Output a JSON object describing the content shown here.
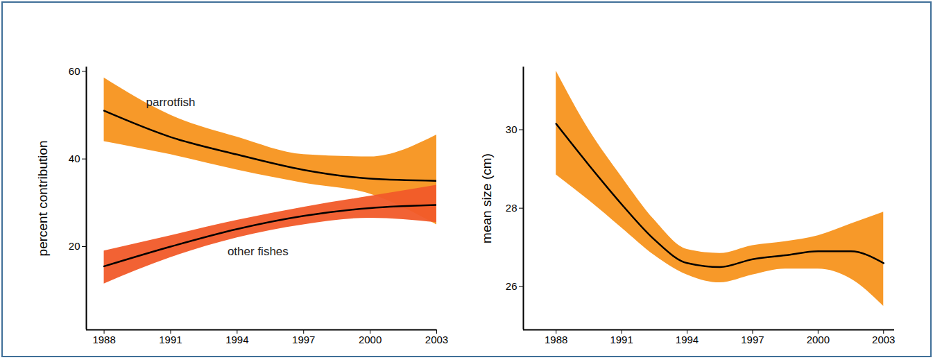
{
  "chart_data": [
    {
      "type": "line",
      "ylabel": "percent contribution",
      "x": [
        1988,
        1991,
        1994,
        1997,
        2000,
        2003
      ],
      "xlim": [
        1987.2,
        2003
      ],
      "xticks": [
        1988,
        1991,
        1994,
        1997,
        2000,
        2003
      ],
      "ylim": [
        1,
        61
      ],
      "yticks": [
        20,
        40,
        60
      ],
      "series": [
        {
          "name": "parrotfish",
          "color": "#f7941e",
          "values": [
            51,
            45,
            41,
            37.5,
            35.5,
            35
          ],
          "lower": [
            44,
            41,
            37.5,
            34.5,
            32,
            25
          ],
          "upper": [
            58.5,
            50,
            45,
            41,
            40.5,
            45.5
          ]
        },
        {
          "name": "other fishes",
          "color": "#f15a29",
          "values": [
            15.5,
            20,
            24,
            27,
            28.8,
            29.5
          ],
          "lower": [
            11.5,
            17.5,
            22,
            25,
            26.5,
            25.5
          ],
          "upper": [
            19,
            22.5,
            26,
            29,
            31.5,
            34
          ]
        }
      ]
    },
    {
      "type": "line",
      "ylabel": "mean size (cm)",
      "x": [
        1988,
        1989.5,
        1991,
        1992.5,
        1994,
        1995.5,
        1997,
        1998.5,
        2000,
        2001.5,
        2003
      ],
      "xlim": [
        1986.5,
        2003.5
      ],
      "xticks": [
        1988,
        1991,
        1994,
        1997,
        2000,
        2003
      ],
      "ylim": [
        24.9,
        31.6
      ],
      "yticks": [
        26,
        28,
        30
      ],
      "series": [
        {
          "color": "#f7941e",
          "values": [
            30.15,
            29.1,
            28.1,
            27.2,
            26.6,
            26.5,
            26.7,
            26.8,
            26.9,
            26.9,
            26.6
          ],
          "lower": [
            28.85,
            28.2,
            27.5,
            26.8,
            26.3,
            26.1,
            26.3,
            26.45,
            26.45,
            26.2,
            25.5
          ],
          "upper": [
            31.5,
            30.0,
            28.8,
            27.7,
            26.95,
            26.85,
            27.05,
            27.15,
            27.3,
            27.6,
            27.9
          ]
        }
      ]
    }
  ]
}
